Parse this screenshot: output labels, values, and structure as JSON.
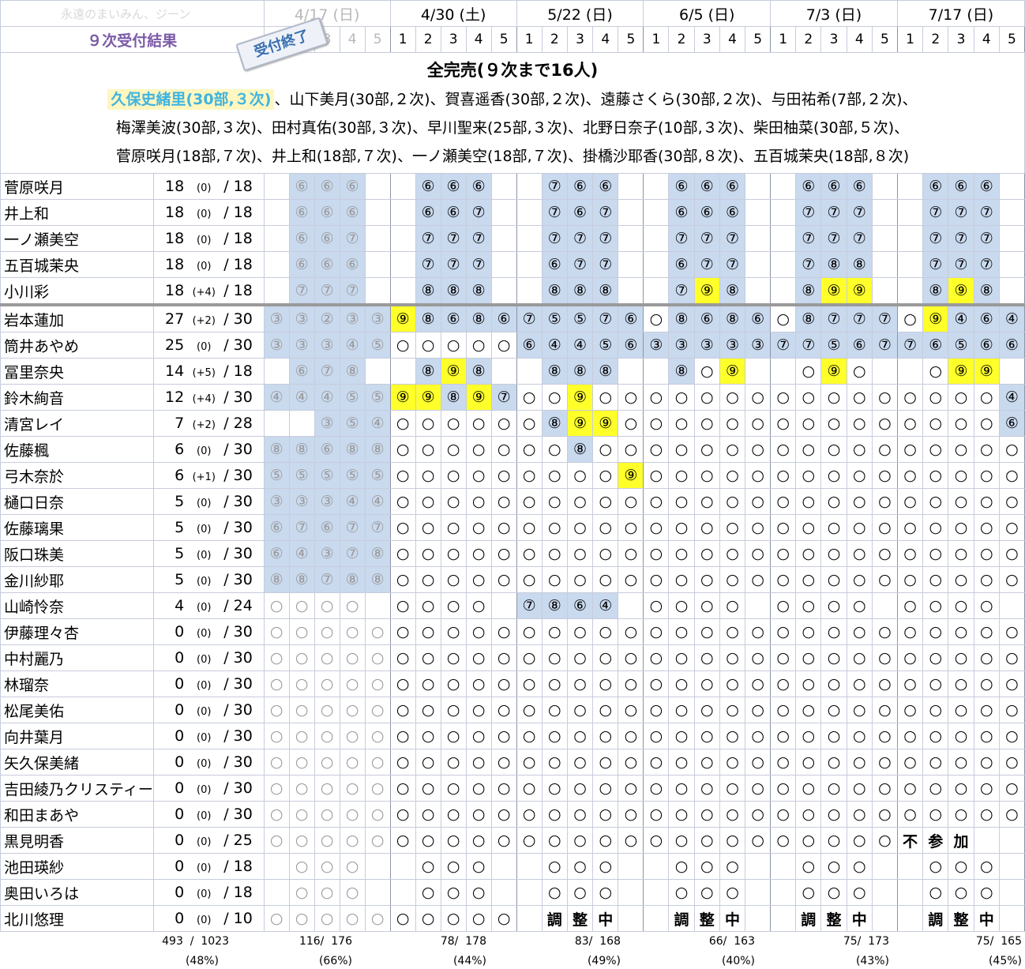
{
  "header": {
    "brand": "永遠のまいみん、ジーン",
    "phase": "９次受付結果",
    "stamp": "受付終了",
    "dates": [
      "4/17 (日)",
      "4/30 (土)",
      "5/22 (日)",
      "6/5 (日)",
      "7/3 (日)",
      "7/17 (日)"
    ],
    "parts": [
      "1",
      "2",
      "3",
      "4",
      "5"
    ]
  },
  "summary": {
    "title": "全完売(９次まで16人)",
    "highlight": "久保史緒里(30部,３次)",
    "line1_rest": "、山下美月(30部,２次)、賀喜遥香(30部,２次)、遠藤さくら(30部,２次)、与田祐希(7部,２次)、",
    "line2": "梅澤美波(30部,３次)、田村真佑(30部,３次)、早川聖来(25部,３次)、北野日奈子(10部,３次)、柴田柚菜(30部,５次)、",
    "line3": "菅原咲月(18部,７次)、井上和(18部,７次)、一ノ瀬美空(18部,７次)、掛橋沙耶香(30部,８次)、五百城茉央(18部,８次)"
  },
  "members": [
    {
      "name": "菅原咲月",
      "sold": "18",
      "delta": "(0)",
      "total": "/ 18",
      "cells": [
        "",
        "⑥",
        "⑥",
        "⑥",
        "",
        "",
        "⑥",
        "⑥",
        "⑥",
        "",
        "",
        "⑦",
        "⑥",
        "⑥",
        "",
        "",
        "⑥",
        "⑥",
        "⑥",
        "",
        "",
        "⑥",
        "⑥",
        "⑥",
        "",
        "",
        "⑥",
        "⑥",
        "⑥",
        ""
      ]
    },
    {
      "name": "井上和",
      "sold": "18",
      "delta": "(0)",
      "total": "/ 18",
      "cells": [
        "",
        "⑥",
        "⑥",
        "⑥",
        "",
        "",
        "⑥",
        "⑥",
        "⑦",
        "",
        "",
        "⑦",
        "⑥",
        "⑦",
        "",
        "",
        "⑥",
        "⑥",
        "⑥",
        "",
        "",
        "⑦",
        "⑦",
        "⑦",
        "",
        "",
        "⑦",
        "⑦",
        "⑦",
        ""
      ]
    },
    {
      "name": "一ノ瀬美空",
      "sold": "18",
      "delta": "(0)",
      "total": "/ 18",
      "cells": [
        "",
        "⑥",
        "⑥",
        "⑦",
        "",
        "",
        "⑦",
        "⑦",
        "⑦",
        "",
        "",
        "⑦",
        "⑦",
        "⑦",
        "",
        "",
        "⑦",
        "⑦",
        "⑦",
        "",
        "",
        "⑦",
        "⑦",
        "⑦",
        "",
        "",
        "⑦",
        "⑦",
        "⑦",
        ""
      ]
    },
    {
      "name": "五百城茉央",
      "sold": "18",
      "delta": "(0)",
      "total": "/ 18",
      "cells": [
        "",
        "⑥",
        "⑥",
        "⑥",
        "",
        "",
        "⑦",
        "⑦",
        "⑦",
        "",
        "",
        "⑥",
        "⑦",
        "⑦",
        "",
        "",
        "⑥",
        "⑦",
        "⑦",
        "",
        "",
        "⑦",
        "⑧",
        "⑧",
        "",
        "",
        "⑦",
        "⑦",
        "⑦",
        ""
      ]
    },
    {
      "name": "小川彩",
      "sold": "18",
      "delta": "(+4)",
      "total": "/ 18",
      "cells": [
        "",
        "⑦",
        "⑦",
        "⑦",
        "",
        "",
        "⑧",
        "⑧",
        "⑧",
        "",
        "",
        "⑧",
        "⑧",
        "⑧",
        "",
        "",
        "⑦",
        "⑨",
        "⑧",
        "",
        "",
        "⑧",
        "⑨",
        "⑨",
        "",
        "",
        "⑧",
        "⑨",
        "⑧",
        ""
      ]
    },
    {
      "name": "岩本蓮加",
      "sold": "27",
      "delta": "(+2)",
      "total": "/ 30",
      "cells": [
        "③",
        "③",
        "②",
        "③",
        "③",
        "⑨",
        "⑧",
        "⑥",
        "⑧",
        "⑥",
        "⑦",
        "⑤",
        "⑤",
        "⑦",
        "⑥",
        "○",
        "⑧",
        "⑥",
        "⑧",
        "⑥",
        "○",
        "⑧",
        "⑦",
        "⑦",
        "⑦",
        "○",
        "⑨",
        "④",
        "⑥",
        "④"
      ]
    },
    {
      "name": "筒井あやめ",
      "sold": "25",
      "delta": "(0)",
      "total": "/ 30",
      "cells": [
        "③",
        "③",
        "③",
        "④",
        "⑤",
        "○",
        "○",
        "○",
        "○",
        "○",
        "⑥",
        "④",
        "④",
        "⑤",
        "⑥",
        "③",
        "③",
        "③",
        "③",
        "③",
        "⑦",
        "⑦",
        "⑤",
        "⑥",
        "⑦",
        "⑦",
        "⑥",
        "⑤",
        "⑥",
        "⑥"
      ]
    },
    {
      "name": "冨里奈央",
      "sold": "14",
      "delta": "(+5)",
      "total": "/ 18",
      "cells": [
        "",
        "⑥",
        "⑦",
        "⑧",
        "",
        "",
        "⑧",
        "⑨",
        "⑧",
        "",
        "",
        "⑧",
        "⑧",
        "⑧",
        "",
        "",
        "⑧",
        "○",
        "⑨",
        "",
        "",
        "○",
        "⑨",
        "○",
        "",
        "",
        "○",
        "⑨",
        "⑨",
        ""
      ]
    },
    {
      "name": "鈴木絢音",
      "sold": "12",
      "delta": "(+4)",
      "total": "/ 30",
      "cells": [
        "④",
        "④",
        "④",
        "⑤",
        "⑤",
        "⑨",
        "⑨",
        "⑧",
        "⑨",
        "⑦",
        "○",
        "○",
        "⑨",
        "○",
        "○",
        "○",
        "○",
        "○",
        "○",
        "○",
        "○",
        "○",
        "○",
        "○",
        "○",
        "○",
        "○",
        "○",
        "○",
        "④"
      ]
    },
    {
      "name": "清宮レイ",
      "sold": "7",
      "delta": "(+2)",
      "total": "/ 28",
      "cells": [
        "",
        "",
        "③",
        "⑤",
        "④",
        "○",
        "○",
        "○",
        "○",
        "○",
        "○",
        "⑧",
        "⑨",
        "⑨",
        "○",
        "○",
        "○",
        "○",
        "○",
        "○",
        "○",
        "○",
        "○",
        "○",
        "○",
        "○",
        "○",
        "○",
        "○",
        "⑥"
      ]
    },
    {
      "name": "佐藤楓",
      "sold": "6",
      "delta": "(0)",
      "total": "/ 30",
      "cells": [
        "⑧",
        "⑧",
        "⑥",
        "⑧",
        "⑧",
        "○",
        "○",
        "○",
        "○",
        "○",
        "○",
        "○",
        "⑧",
        "○",
        "○",
        "○",
        "○",
        "○",
        "○",
        "○",
        "○",
        "○",
        "○",
        "○",
        "○",
        "○",
        "○",
        "○",
        "○",
        "○"
      ]
    },
    {
      "name": "弓木奈於",
      "sold": "6",
      "delta": "(+1)",
      "total": "/ 30",
      "cells": [
        "⑤",
        "⑤",
        "⑤",
        "⑤",
        "⑤",
        "○",
        "○",
        "○",
        "○",
        "○",
        "○",
        "○",
        "○",
        "○",
        "⑨",
        "○",
        "○",
        "○",
        "○",
        "○",
        "○",
        "○",
        "○",
        "○",
        "○",
        "○",
        "○",
        "○",
        "○",
        "○"
      ]
    },
    {
      "name": "樋口日奈",
      "sold": "5",
      "delta": "(0)",
      "total": "/ 30",
      "cells": [
        "③",
        "③",
        "③",
        "④",
        "④",
        "○",
        "○",
        "○",
        "○",
        "○",
        "○",
        "○",
        "○",
        "○",
        "○",
        "○",
        "○",
        "○",
        "○",
        "○",
        "○",
        "○",
        "○",
        "○",
        "○",
        "○",
        "○",
        "○",
        "○",
        "○"
      ]
    },
    {
      "name": "佐藤璃果",
      "sold": "5",
      "delta": "(0)",
      "total": "/ 30",
      "cells": [
        "⑥",
        "⑦",
        "⑥",
        "⑦",
        "⑦",
        "○",
        "○",
        "○",
        "○",
        "○",
        "○",
        "○",
        "○",
        "○",
        "○",
        "○",
        "○",
        "○",
        "○",
        "○",
        "○",
        "○",
        "○",
        "○",
        "○",
        "○",
        "○",
        "○",
        "○",
        "○"
      ]
    },
    {
      "name": "阪口珠美",
      "sold": "5",
      "delta": "(0)",
      "total": "/ 30",
      "cells": [
        "⑥",
        "④",
        "③",
        "⑦",
        "⑧",
        "○",
        "○",
        "○",
        "○",
        "○",
        "○",
        "○",
        "○",
        "○",
        "○",
        "○",
        "○",
        "○",
        "○",
        "○",
        "○",
        "○",
        "○",
        "○",
        "○",
        "○",
        "○",
        "○",
        "○",
        "○"
      ]
    },
    {
      "name": "金川紗耶",
      "sold": "5",
      "delta": "(0)",
      "total": "/ 30",
      "cells": [
        "⑧",
        "⑧",
        "⑦",
        "⑧",
        "⑧",
        "○",
        "○",
        "○",
        "○",
        "○",
        "○",
        "○",
        "○",
        "○",
        "○",
        "○",
        "○",
        "○",
        "○",
        "○",
        "○",
        "○",
        "○",
        "○",
        "○",
        "○",
        "○",
        "○",
        "○",
        "○"
      ]
    },
    {
      "name": "山崎怜奈",
      "sold": "4",
      "delta": "(0)",
      "total": "/ 24",
      "cells": [
        "○",
        "○",
        "○",
        "○",
        "",
        "○",
        "○",
        "○",
        "○",
        "",
        "⑦",
        "⑧",
        "⑥",
        "④",
        "",
        "○",
        "○",
        "○",
        "○",
        "",
        "○",
        "○",
        "○",
        "○",
        "",
        "○",
        "○",
        "○",
        "○",
        ""
      ]
    },
    {
      "name": "伊藤理々杏",
      "sold": "0",
      "delta": "(0)",
      "total": "/ 30",
      "cells": [
        "○",
        "○",
        "○",
        "○",
        "○",
        "○",
        "○",
        "○",
        "○",
        "○",
        "○",
        "○",
        "○",
        "○",
        "○",
        "○",
        "○",
        "○",
        "○",
        "○",
        "○",
        "○",
        "○",
        "○",
        "○",
        "○",
        "○",
        "○",
        "○",
        "○"
      ]
    },
    {
      "name": "中村麗乃",
      "sold": "0",
      "delta": "(0)",
      "total": "/ 30",
      "cells": [
        "○",
        "○",
        "○",
        "○",
        "○",
        "○",
        "○",
        "○",
        "○",
        "○",
        "○",
        "○",
        "○",
        "○",
        "○",
        "○",
        "○",
        "○",
        "○",
        "○",
        "○",
        "○",
        "○",
        "○",
        "○",
        "○",
        "○",
        "○",
        "○",
        "○"
      ]
    },
    {
      "name": "林瑠奈",
      "sold": "0",
      "delta": "(0)",
      "total": "/ 30",
      "cells": [
        "○",
        "○",
        "○",
        "○",
        "○",
        "○",
        "○",
        "○",
        "○",
        "○",
        "○",
        "○",
        "○",
        "○",
        "○",
        "○",
        "○",
        "○",
        "○",
        "○",
        "○",
        "○",
        "○",
        "○",
        "○",
        "○",
        "○",
        "○",
        "○",
        "○"
      ]
    },
    {
      "name": "松尾美佑",
      "sold": "0",
      "delta": "(0)",
      "total": "/ 30",
      "cells": [
        "○",
        "○",
        "○",
        "○",
        "○",
        "○",
        "○",
        "○",
        "○",
        "○",
        "○",
        "○",
        "○",
        "○",
        "○",
        "○",
        "○",
        "○",
        "○",
        "○",
        "○",
        "○",
        "○",
        "○",
        "○",
        "○",
        "○",
        "○",
        "○",
        "○"
      ]
    },
    {
      "name": "向井葉月",
      "sold": "0",
      "delta": "(0)",
      "total": "/ 30",
      "cells": [
        "○",
        "○",
        "○",
        "○",
        "○",
        "○",
        "○",
        "○",
        "○",
        "○",
        "○",
        "○",
        "○",
        "○",
        "○",
        "○",
        "○",
        "○",
        "○",
        "○",
        "○",
        "○",
        "○",
        "○",
        "○",
        "○",
        "○",
        "○",
        "○",
        "○"
      ]
    },
    {
      "name": "矢久保美緒",
      "sold": "0",
      "delta": "(0)",
      "total": "/ 30",
      "cells": [
        "○",
        "○",
        "○",
        "○",
        "○",
        "○",
        "○",
        "○",
        "○",
        "○",
        "○",
        "○",
        "○",
        "○",
        "○",
        "○",
        "○",
        "○",
        "○",
        "○",
        "○",
        "○",
        "○",
        "○",
        "○",
        "○",
        "○",
        "○",
        "○",
        "○"
      ]
    },
    {
      "name": "吉田綾乃クリスティー",
      "sold": "0",
      "delta": "(0)",
      "total": "/ 30",
      "small": true,
      "cells": [
        "○",
        "○",
        "○",
        "○",
        "○",
        "○",
        "○",
        "○",
        "○",
        "○",
        "○",
        "○",
        "○",
        "○",
        "○",
        "○",
        "○",
        "○",
        "○",
        "○",
        "○",
        "○",
        "○",
        "○",
        "○",
        "○",
        "○",
        "○",
        "○",
        "○"
      ]
    },
    {
      "name": "和田まあや",
      "sold": "0",
      "delta": "(0)",
      "total": "/ 30",
      "cells": [
        "○",
        "○",
        "○",
        "○",
        "○",
        "○",
        "○",
        "○",
        "○",
        "○",
        "○",
        "○",
        "○",
        "○",
        "○",
        "○",
        "○",
        "○",
        "○",
        "○",
        "○",
        "○",
        "○",
        "○",
        "○",
        "○",
        "○",
        "○",
        "○",
        "○"
      ]
    },
    {
      "name": "黒見明香",
      "sold": "0",
      "delta": "(0)",
      "total": "/ 25",
      "cells": [
        "○",
        "○",
        "○",
        "○",
        "○",
        "○",
        "○",
        "○",
        "○",
        "○",
        "○",
        "○",
        "○",
        "○",
        "○",
        "○",
        "○",
        "○",
        "○",
        "○",
        "○",
        "○",
        "○",
        "○",
        "○",
        "不",
        "参",
        "加",
        "",
        ""
      ],
      "bigFrom": 25
    },
    {
      "name": "池田瑛紗",
      "sold": "0",
      "delta": "(0)",
      "total": "/ 18",
      "cells": [
        "",
        "○",
        "○",
        "○",
        "",
        "",
        "○",
        "○",
        "○",
        "",
        "",
        "○",
        "○",
        "○",
        "",
        "",
        "○",
        "○",
        "○",
        "",
        "",
        "○",
        "○",
        "○",
        "",
        "",
        "○",
        "○",
        "○",
        ""
      ]
    },
    {
      "name": "奥田いろは",
      "sold": "0",
      "delta": "(0)",
      "total": "/ 18",
      "cells": [
        "",
        "○",
        "○",
        "○",
        "",
        "",
        "○",
        "○",
        "○",
        "",
        "",
        "○",
        "○",
        "○",
        "",
        "",
        "○",
        "○",
        "○",
        "",
        "",
        "○",
        "○",
        "○",
        "",
        "",
        "○",
        "○",
        "○",
        ""
      ]
    },
    {
      "name": "北川悠理",
      "sold": "0",
      "delta": "(0)",
      "total": "/ 10",
      "cells": [
        "○",
        "○",
        "○",
        "○",
        "○",
        "○",
        "○",
        "○",
        "○",
        "○",
        "",
        "調",
        "整",
        "中",
        "",
        "",
        "調",
        "整",
        "中",
        "",
        "",
        "調",
        "整",
        "中",
        "",
        "",
        "調",
        "整",
        "中",
        ""
      ],
      "bigFrom": 10
    }
  ],
  "footer": {
    "totals": [
      {
        "count": "493  /  1023",
        "pct": "(48%)"
      },
      {
        "count": "116/  176",
        "pct": "(66%)"
      },
      {
        "count": "78/  178",
        "pct": "(44%)"
      },
      {
        "count": "83/  168",
        "pct": "(49%)"
      },
      {
        "count": "66/  163",
        "pct": "(40%)"
      },
      {
        "count": "75/  173",
        "pct": "(43%)"
      },
      {
        "count": "75/  165",
        "pct": "(45%)"
      }
    ]
  },
  "colors": {
    "sold_bg": "#c9d9ee",
    "latest_bg": "#ffff2a",
    "highlight_text": "#3fb4e0",
    "phase_text": "#7c5ba6"
  }
}
